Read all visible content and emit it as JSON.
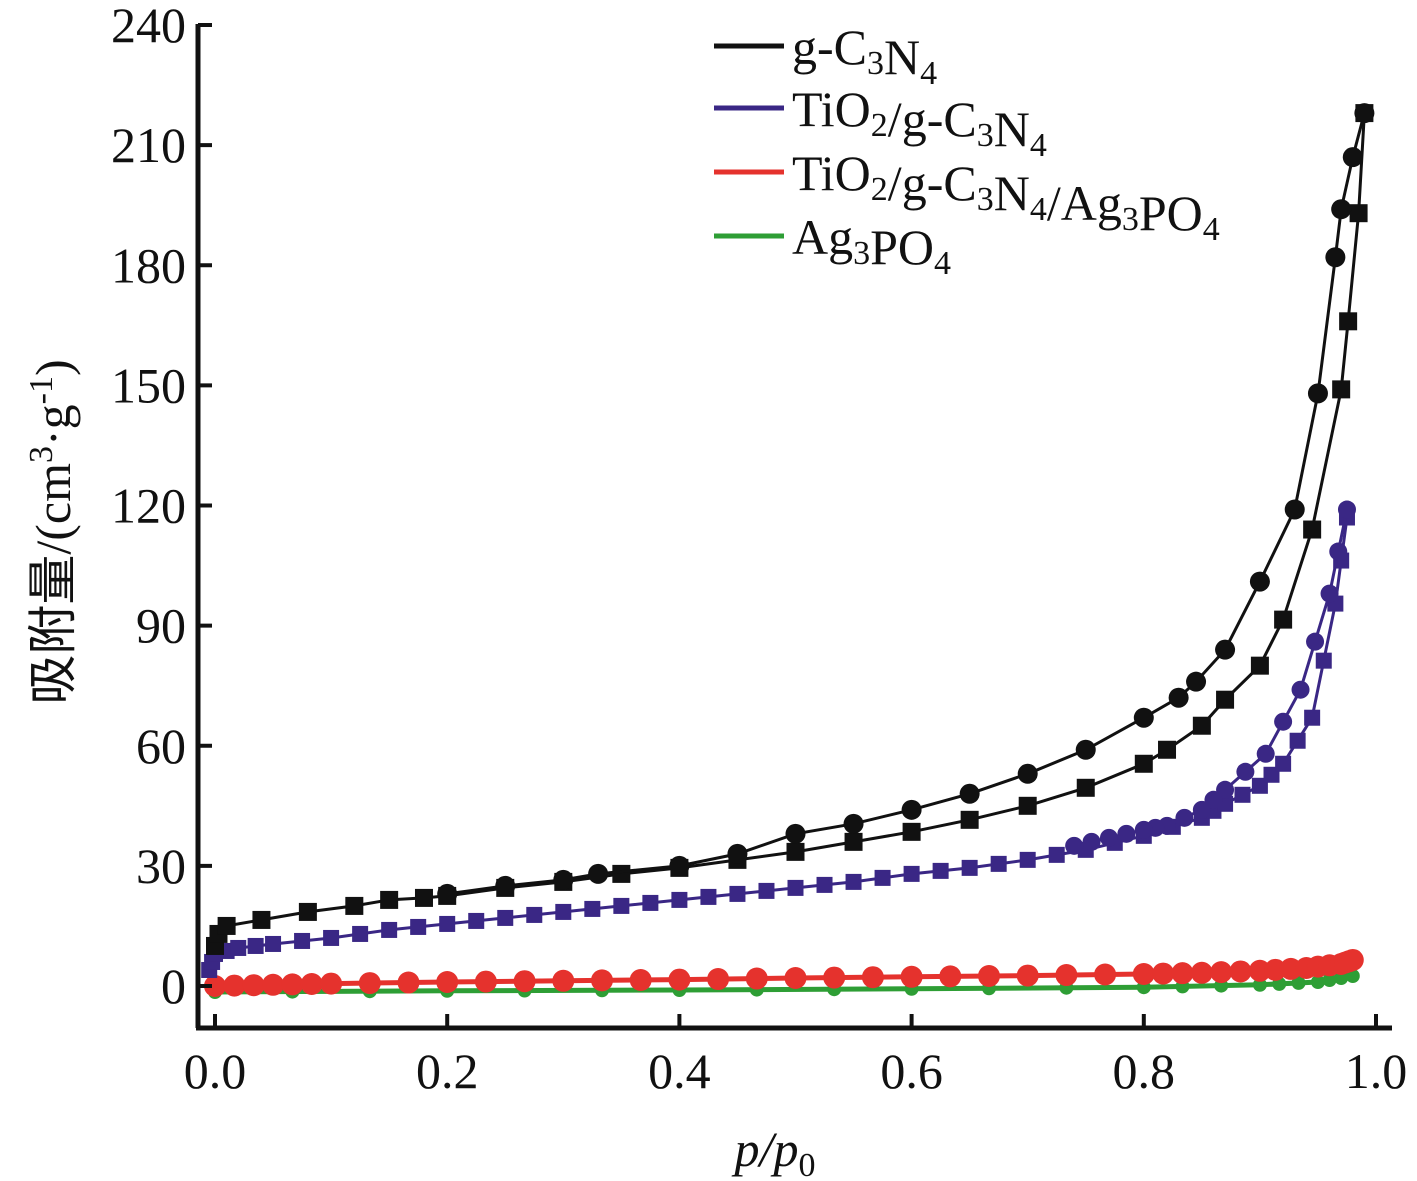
{
  "chart_data": {
    "type": "line",
    "xlabel": "p/p0",
    "ylabel": "吸附量/(cm3·g-1)",
    "xlim": [
      -0.01,
      1.0
    ],
    "ylim": [
      -10,
      240
    ],
    "x_ticks": [
      "0.0",
      "0.2",
      "0.4",
      "0.6",
      "0.8",
      "1.0"
    ],
    "y_ticks": [
      "0",
      "30",
      "60",
      "90",
      "120",
      "150",
      "180",
      "210",
      "240"
    ],
    "legend_position": "top-right",
    "series": [
      {
        "name": "g-C3N4",
        "color": "#111111",
        "adsorption": [
          [
            0.0,
            10
          ],
          [
            0.003,
            13
          ],
          [
            0.01,
            15
          ],
          [
            0.04,
            16.5
          ],
          [
            0.08,
            18.5
          ],
          [
            0.12,
            20
          ],
          [
            0.15,
            21.5
          ],
          [
            0.18,
            22
          ],
          [
            0.2,
            22.5
          ],
          [
            0.25,
            24.5
          ],
          [
            0.3,
            26
          ],
          [
            0.35,
            28
          ],
          [
            0.4,
            29.5
          ],
          [
            0.45,
            31.5
          ],
          [
            0.5,
            33.5
          ],
          [
            0.55,
            36
          ],
          [
            0.6,
            38.5
          ],
          [
            0.65,
            41.5
          ],
          [
            0.7,
            45
          ],
          [
            0.75,
            49.5
          ],
          [
            0.8,
            55.5
          ],
          [
            0.82,
            59
          ],
          [
            0.85,
            65
          ],
          [
            0.87,
            71.5
          ],
          [
            0.9,
            80
          ],
          [
            0.92,
            91.5
          ],
          [
            0.945,
            114
          ],
          [
            0.97,
            149
          ],
          [
            0.976,
            166
          ],
          [
            0.985,
            193
          ],
          [
            0.99,
            218
          ]
        ],
        "desorption": [
          [
            0.99,
            218
          ],
          [
            0.98,
            207
          ],
          [
            0.97,
            194
          ],
          [
            0.965,
            182
          ],
          [
            0.95,
            148
          ],
          [
            0.93,
            119
          ],
          [
            0.9,
            101
          ],
          [
            0.87,
            84
          ],
          [
            0.845,
            76
          ],
          [
            0.83,
            72
          ],
          [
            0.8,
            67
          ],
          [
            0.75,
            59
          ],
          [
            0.7,
            53
          ],
          [
            0.65,
            48
          ],
          [
            0.6,
            44
          ],
          [
            0.55,
            40.5
          ],
          [
            0.5,
            38
          ],
          [
            0.45,
            33
          ],
          [
            0.4,
            30
          ],
          [
            0.33,
            28
          ],
          [
            0.3,
            26.5
          ],
          [
            0.25,
            25
          ],
          [
            0.2,
            23
          ]
        ]
      },
      {
        "name": "TiO2/g-C3N4",
        "color": "#3a2785",
        "adsorption": [
          [
            -0.005,
            4
          ],
          [
            0.0,
            8
          ],
          [
            0.02,
            9.5
          ],
          [
            0.05,
            10.5
          ],
          [
            0.1,
            12
          ],
          [
            0.15,
            14
          ],
          [
            0.2,
            15.5
          ],
          [
            0.25,
            17
          ],
          [
            0.3,
            18.5
          ],
          [
            0.35,
            20
          ],
          [
            0.4,
            21.5
          ],
          [
            0.45,
            23
          ],
          [
            0.5,
            24.5
          ],
          [
            0.55,
            26
          ],
          [
            0.6,
            28
          ],
          [
            0.65,
            29.5
          ],
          [
            0.7,
            31.5
          ],
          [
            0.75,
            34
          ],
          [
            0.8,
            37.5
          ],
          [
            0.85,
            42
          ],
          [
            0.87,
            45.5
          ],
          [
            0.9,
            50
          ],
          [
            0.92,
            55.5
          ],
          [
            0.945,
            67
          ],
          [
            0.965,
            95.5
          ],
          [
            0.975,
            117
          ]
        ],
        "desorption": [
          [
            0.975,
            119
          ],
          [
            0.96,
            98
          ],
          [
            0.935,
            74
          ],
          [
            0.905,
            58
          ],
          [
            0.87,
            49
          ],
          [
            0.85,
            44
          ],
          [
            0.82,
            40
          ],
          [
            0.8,
            39
          ],
          [
            0.77,
            37
          ],
          [
            0.74,
            35
          ]
        ]
      },
      {
        "name": "TiO2/g-C3N4/Ag3PO4",
        "color": "#e5322d",
        "adsorption": [
          [
            0.0,
            0
          ],
          [
            0.05,
            0.3
          ],
          [
            0.1,
            0.6
          ],
          [
            0.2,
            1
          ],
          [
            0.3,
            1.3
          ],
          [
            0.4,
            1.6
          ],
          [
            0.5,
            2
          ],
          [
            0.6,
            2.3
          ],
          [
            0.7,
            2.6
          ],
          [
            0.8,
            3
          ],
          [
            0.85,
            3.3
          ],
          [
            0.9,
            3.8
          ],
          [
            0.94,
            4.5
          ],
          [
            0.97,
            5.5
          ],
          [
            0.98,
            6.5
          ]
        ],
        "desorption": []
      },
      {
        "name": "Ag3PO4",
        "color": "#2e9e35",
        "adsorption": [
          [
            0.0,
            -1.5
          ],
          [
            0.2,
            -1.2
          ],
          [
            0.4,
            -1
          ],
          [
            0.6,
            -0.7
          ],
          [
            0.8,
            -0.3
          ],
          [
            0.9,
            0.3
          ],
          [
            0.95,
            1
          ],
          [
            0.98,
            2.5
          ]
        ],
        "desorption": []
      }
    ]
  }
}
